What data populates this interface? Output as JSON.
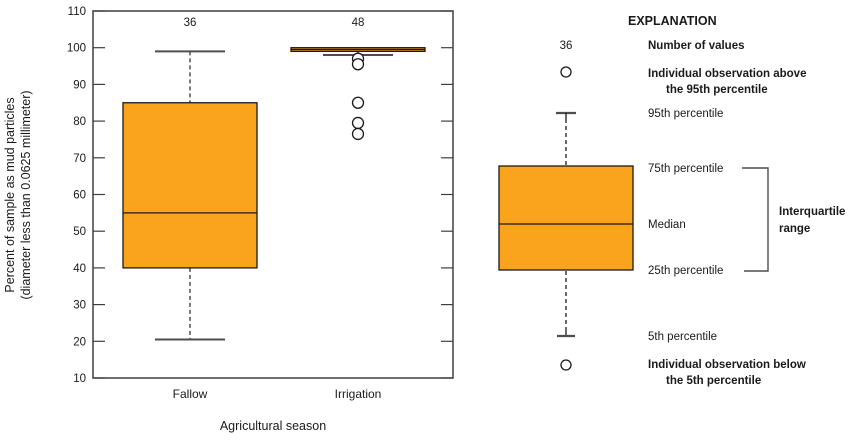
{
  "chart_data": {
    "type": "boxplot",
    "xlabel": "Agricultural season",
    "ylabel_line1": "Percent of sample as mud particles",
    "ylabel_line2": "(diameter less than 0.0625 millimeter)",
    "ylim": [
      10,
      110
    ],
    "yticks": [
      110,
      100,
      90,
      80,
      70,
      60,
      50,
      40,
      30,
      20,
      10
    ],
    "grid": false,
    "box_color": "#F9A41C",
    "categories": [
      "Fallow",
      "Irrigation"
    ],
    "series": [
      {
        "category": "Fallow",
        "n": 36,
        "p5": 20.5,
        "p25": 40,
        "median": 55,
        "p75": 85,
        "p95": 99,
        "outliers_above": [],
        "outliers_below": []
      },
      {
        "category": "Irrigation",
        "n": 48,
        "p5": 98,
        "p25": 99,
        "median": 99.5,
        "p75": 100,
        "p95": 100,
        "outliers_above": [],
        "outliers_below": [
          97,
          95.5,
          85,
          79.5,
          76.5
        ]
      }
    ]
  },
  "legend": {
    "title": "EXPLANATION",
    "n_value": "36",
    "items": {
      "number_of_values": "Number of values",
      "obs_above_1": "Individual observation above",
      "obs_above_2": "the 95th percentile",
      "p95": "95th percentile",
      "p75": "75th percentile",
      "median": "Median",
      "p25": "25th percentile",
      "p5": "5th percentile",
      "obs_below_1": "Individual observation below",
      "obs_below_2": "the 5th percentile",
      "iqr_1": "Interquartile",
      "iqr_2": "range"
    }
  }
}
